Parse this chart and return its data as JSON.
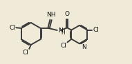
{
  "bg_color": "#f0ead8",
  "bond_color": "#3a3a3a",
  "text_color": "#111111",
  "line_width": 1.4,
  "font_size": 6.5,
  "fig_width": 1.91,
  "fig_height": 0.93,
  "dpi": 100,
  "xlim": [
    0,
    11
  ],
  "ylim": [
    0,
    5.5
  ]
}
